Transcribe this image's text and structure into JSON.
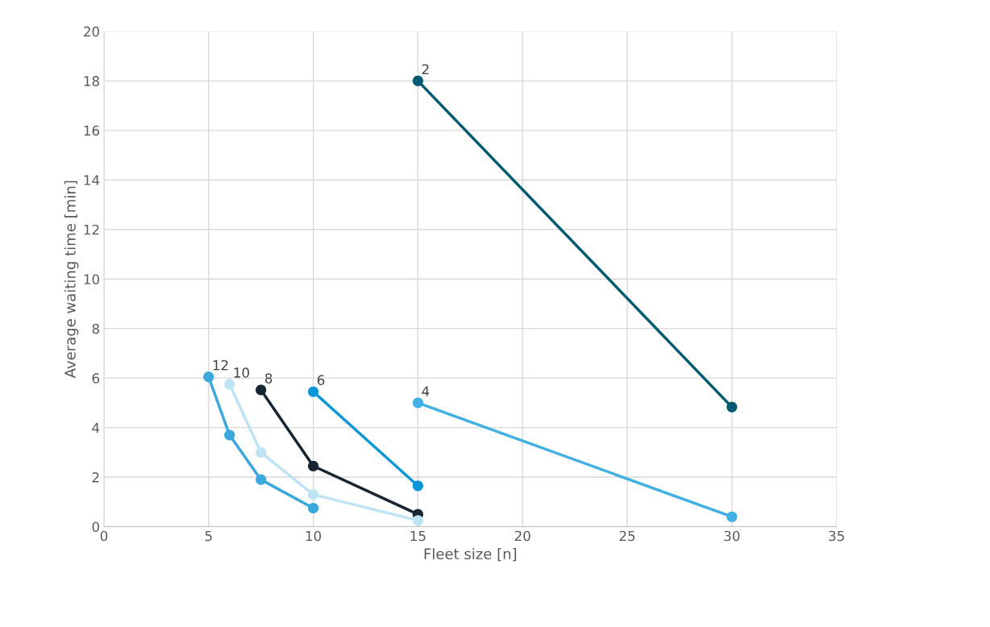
{
  "chart_data": {
    "type": "line",
    "xlabel": "Fleet size [n]",
    "ylabel": "Average waiting time [min]",
    "xlim": [
      0,
      35
    ],
    "xticks": [
      0,
      5,
      10,
      15,
      20,
      25,
      30,
      35
    ],
    "ylim": [
      0,
      20
    ],
    "yticks": [
      0,
      2,
      4,
      6,
      8,
      10,
      12,
      14,
      16,
      18,
      20
    ],
    "grid": true,
    "legend": false,
    "marker": "circle",
    "line_style": "solid",
    "series": [
      {
        "name": "2",
        "color": "#005b72",
        "x": [
          15,
          30
        ],
        "values": [
          18,
          4.83
        ]
      },
      {
        "name": "4",
        "color": "#41b0e4",
        "x": [
          15,
          30
        ],
        "values": [
          5.0,
          0.4
        ]
      },
      {
        "name": "6",
        "color": "#0a96d8",
        "x": [
          10,
          15
        ],
        "values": [
          5.45,
          1.65
        ]
      },
      {
        "name": "8",
        "color": "#172530",
        "x": [
          7.5,
          10,
          15
        ],
        "values": [
          5.52,
          2.45,
          0.5
        ]
      },
      {
        "name": "10",
        "color": "#bde3f5",
        "x": [
          6,
          7.5,
          10,
          15
        ],
        "values": [
          5.75,
          3.0,
          1.3,
          0.25
        ]
      },
      {
        "name": "12",
        "color": "#3aa8dd",
        "x": [
          5,
          6,
          7.5,
          10
        ],
        "values": [
          6.05,
          3.7,
          1.9,
          0.75
        ]
      }
    ]
  }
}
